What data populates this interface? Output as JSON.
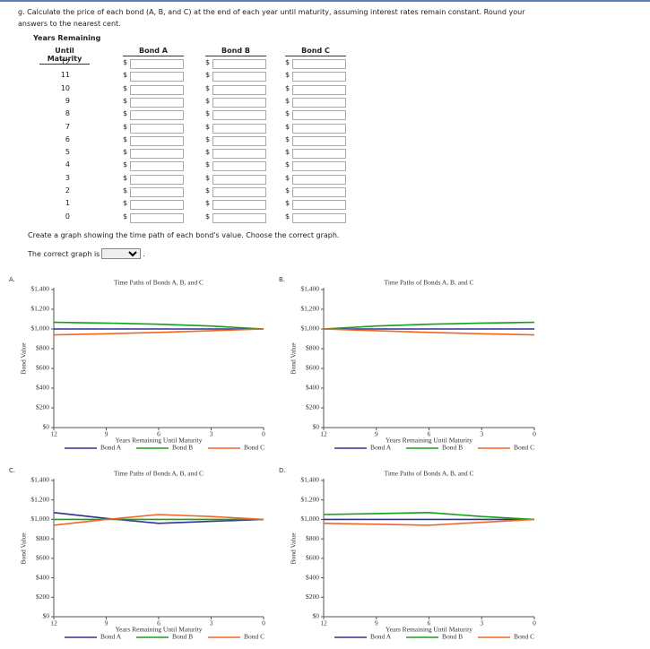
{
  "question": "g. Calculate the price of each bond (A, B, and C) at the end of each year until maturity, assuming interest rates remain constant. Round your answers to the nearest cent.",
  "table": {
    "header_top": "Years Remaining",
    "headers": [
      "Until Maturity",
      "Bond A",
      "Bond B",
      "Bond C"
    ],
    "currency": "$",
    "years": [
      12,
      11,
      10,
      9,
      8,
      7,
      6,
      5,
      4,
      3,
      2,
      1,
      0
    ]
  },
  "instruction": "Create a graph showing the time path of each bond's value. Choose the correct graph.",
  "answer_prompt": "The correct graph is",
  "answer_suffix": ".",
  "charts": [
    {
      "label": "A.",
      "type": "line",
      "title": "Time Paths of Bonds A, B, and C",
      "x_label": "Years Remaining Until Maturity",
      "y_label": "Bond Value",
      "x": [
        12,
        9,
        6,
        3,
        0
      ],
      "xlim": [
        12,
        0
      ],
      "xticks": [
        12,
        9,
        6,
        3,
        0
      ],
      "ylim": [
        0,
        1400
      ],
      "yticks": [
        {
          "value": 0,
          "label": "$0"
        },
        {
          "value": 200,
          "label": "$200"
        },
        {
          "value": 400,
          "label": "$400"
        },
        {
          "value": 600,
          "label": "$600"
        },
        {
          "value": 800,
          "label": "$800"
        },
        {
          "value": 1000,
          "label": "$1,000"
        },
        {
          "value": 1200,
          "label": "$1,200"
        },
        {
          "value": 1400,
          "label": "$1,400"
        }
      ],
      "series": [
        {
          "name": "Bond A",
          "color": "#2e3192",
          "values": [
            1000,
            1000,
            1000,
            1000,
            1000
          ]
        },
        {
          "name": "Bond B",
          "color": "#1a9e1a",
          "values": [
            1068,
            1060,
            1048,
            1030,
            1000
          ]
        },
        {
          "name": "Bond C",
          "color": "#f26522",
          "values": [
            940,
            952,
            965,
            982,
            1000
          ]
        }
      ]
    },
    {
      "label": "B.",
      "type": "line",
      "title": "Time Paths of Bonds A, B, and C",
      "x_label": "Years Remaining Until Maturity",
      "y_label": "Bond Value",
      "x": [
        12,
        9,
        6,
        3,
        0
      ],
      "xlim": [
        12,
        0
      ],
      "xticks": [
        12,
        9,
        6,
        3,
        0
      ],
      "ylim": [
        0,
        1400
      ],
      "yticks": [
        {
          "value": 0,
          "label": "$0"
        },
        {
          "value": 200,
          "label": "$200"
        },
        {
          "value": 400,
          "label": "$400"
        },
        {
          "value": 600,
          "label": "$600"
        },
        {
          "value": 800,
          "label": "$800"
        },
        {
          "value": 1000,
          "label": "$1,000"
        },
        {
          "value": 1200,
          "label": "$1,200"
        },
        {
          "value": 1400,
          "label": "$1,400"
        }
      ],
      "series": [
        {
          "name": "Bond A",
          "color": "#2e3192",
          "values": [
            1000,
            1000,
            1000,
            1000,
            1000
          ]
        },
        {
          "name": "Bond B",
          "color": "#1a9e1a",
          "values": [
            1000,
            1030,
            1048,
            1060,
            1068
          ]
        },
        {
          "name": "Bond C",
          "color": "#f26522",
          "values": [
            1000,
            982,
            965,
            952,
            940
          ]
        }
      ]
    },
    {
      "label": "C.",
      "type": "line",
      "title": "Time Paths of Bonds A, B, and C",
      "x_label": "Years Remaining Until Maturity",
      "y_label": "Bond Value",
      "x": [
        12,
        9,
        6,
        3,
        0
      ],
      "xlim": [
        12,
        0
      ],
      "xticks": [
        12,
        9,
        6,
        3,
        0
      ],
      "ylim": [
        0,
        1400
      ],
      "yticks": [
        {
          "value": 0,
          "label": "$0"
        },
        {
          "value": 200,
          "label": "$200"
        },
        {
          "value": 400,
          "label": "$400"
        },
        {
          "value": 600,
          "label": "$600"
        },
        {
          "value": 800,
          "label": "$800"
        },
        {
          "value": 1000,
          "label": "$1,000"
        },
        {
          "value": 1200,
          "label": "$1,200"
        },
        {
          "value": 1400,
          "label": "$1,400"
        }
      ],
      "series": [
        {
          "name": "Bond A",
          "color": "#2e3192",
          "values": [
            1070,
            1010,
            960,
            980,
            1000
          ]
        },
        {
          "name": "Bond B",
          "color": "#1a9e1a",
          "values": [
            1000,
            1000,
            1000,
            1000,
            1000
          ]
        },
        {
          "name": "Bond C",
          "color": "#f26522",
          "values": [
            940,
            1000,
            1050,
            1030,
            1000
          ]
        }
      ]
    },
    {
      "label": "D.",
      "type": "line",
      "title": "Time Paths of Bonds A, B, and C",
      "x_label": "Years Remaining Until Maturity",
      "y_label": "Bond Value",
      "x": [
        12,
        9,
        6,
        3,
        0
      ],
      "xlim": [
        12,
        0
      ],
      "xticks": [
        12,
        9,
        6,
        3,
        0
      ],
      "ylim": [
        0,
        1400
      ],
      "yticks": [
        {
          "value": 0,
          "label": "$0"
        },
        {
          "value": 200,
          "label": "$200"
        },
        {
          "value": 400,
          "label": "$400"
        },
        {
          "value": 600,
          "label": "$600"
        },
        {
          "value": 800,
          "label": "$800"
        },
        {
          "value": 1000,
          "label": "$1,000"
        },
        {
          "value": 1200,
          "label": "$1,200"
        },
        {
          "value": 1400,
          "label": "$1,400"
        }
      ],
      "series": [
        {
          "name": "Bond A",
          "color": "#2e3192",
          "values": [
            1000,
            1000,
            1000,
            1000,
            1000
          ]
        },
        {
          "name": "Bond B",
          "color": "#1a9e1a",
          "values": [
            1050,
            1060,
            1070,
            1030,
            1000
          ]
        },
        {
          "name": "Bond C",
          "color": "#f26522",
          "values": [
            960,
            950,
            940,
            970,
            1000
          ]
        }
      ]
    }
  ]
}
